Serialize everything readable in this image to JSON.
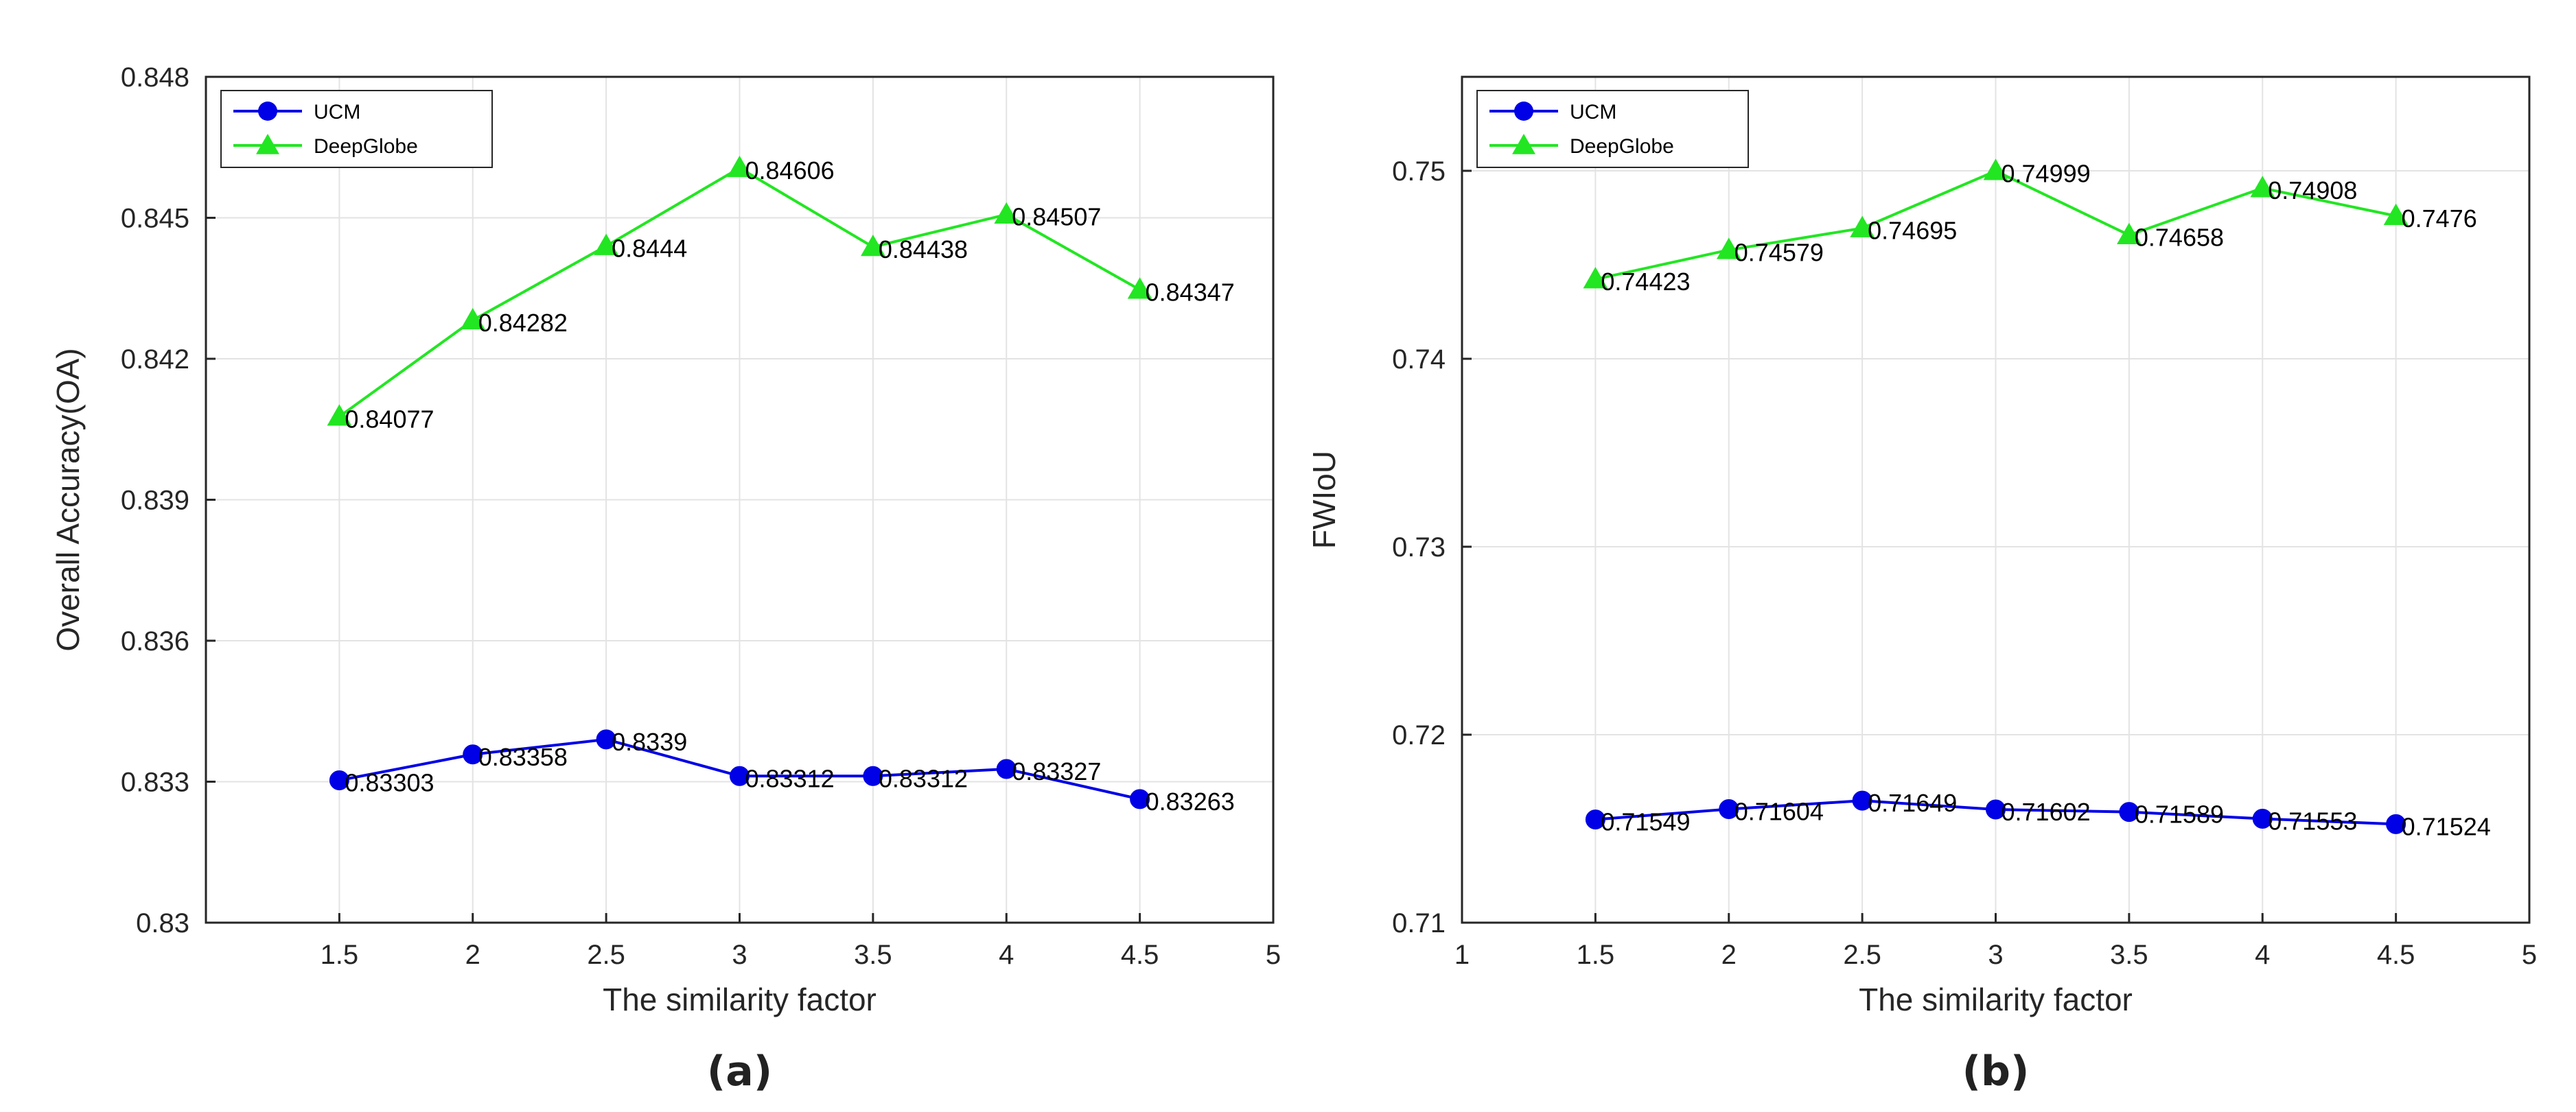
{
  "chart_data": [
    {
      "type": "line",
      "panel_label": "(a)",
      "xlabel": "The similarity factor",
      "ylabel": "Overall Accuracy(OA)",
      "xlim": [
        1,
        5
      ],
      "ylim": [
        0.83,
        0.848
      ],
      "xticks": [
        1.5,
        2,
        2.5,
        3,
        3.5,
        4,
        4.5,
        5
      ],
      "yticks": [
        0.83,
        0.833,
        0.836,
        0.839,
        0.842,
        0.845,
        0.848
      ],
      "xtick_labels": [
        "1.5",
        "2",
        "2.5",
        "3",
        "3.5",
        "4",
        "4.5",
        "5"
      ],
      "ytick_labels": [
        "0.83",
        "0.833",
        "0.836",
        "0.839",
        "0.842",
        "0.845",
        "0.848"
      ],
      "grid": true,
      "legend_position": "top-left",
      "x": [
        1.5,
        2,
        2.5,
        3,
        3.5,
        4,
        4.5
      ],
      "series": [
        {
          "name": "UCM",
          "color": "#0000e6",
          "marker": "circle",
          "values": [
            0.83303,
            0.83358,
            0.8339,
            0.83312,
            0.83312,
            0.83327,
            0.83263
          ],
          "labels": [
            "0.83303",
            "0.83358",
            "0.8339",
            "0.83312",
            "0.83312",
            "0.83327",
            "0.83263"
          ]
        },
        {
          "name": "DeepGlobe",
          "color": "#22e622",
          "marker": "triangle",
          "values": [
            0.84077,
            0.84282,
            0.8444,
            0.84606,
            0.84438,
            0.84507,
            0.84347
          ],
          "labels": [
            "0.84077",
            "0.84282",
            "0.8444",
            "0.84606",
            "0.84438",
            "0.84507",
            "0.84347"
          ]
        }
      ]
    },
    {
      "type": "line",
      "panel_label": "(b)",
      "xlabel": "The similarity factor",
      "ylabel": "FWIoU",
      "xlim": [
        1,
        5
      ],
      "ylim": [
        0.71,
        0.755
      ],
      "xticks": [
        1,
        1.5,
        2,
        2.5,
        3,
        3.5,
        4,
        4.5,
        5
      ],
      "yticks": [
        0.71,
        0.72,
        0.73,
        0.74,
        0.75
      ],
      "xtick_labels": [
        "1",
        "1.5",
        "2",
        "2.5",
        "3",
        "3.5",
        "4",
        "4.5",
        "5"
      ],
      "ytick_labels": [
        "0.71",
        "0.72",
        "0.73",
        "0.74",
        "0.75"
      ],
      "grid": true,
      "legend_position": "top-left",
      "x": [
        1.5,
        2,
        2.5,
        3,
        3.5,
        4,
        4.5
      ],
      "series": [
        {
          "name": "UCM",
          "color": "#0000e6",
          "marker": "circle",
          "values": [
            0.71549,
            0.71604,
            0.71649,
            0.71602,
            0.71589,
            0.71553,
            0.71524
          ],
          "labels": [
            "0.71549",
            "0.71604",
            "0.71649",
            "0.71602",
            "0.71589",
            "0.71553",
            "0.71524"
          ]
        },
        {
          "name": "DeepGlobe",
          "color": "#22e622",
          "marker": "triangle",
          "values": [
            0.74423,
            0.74579,
            0.74695,
            0.74999,
            0.74658,
            0.74908,
            0.7476
          ],
          "labels": [
            "0.74423",
            "0.74579",
            "0.74695",
            "0.74999",
            "0.74658",
            "0.74908",
            "0.7476"
          ]
        }
      ]
    }
  ]
}
